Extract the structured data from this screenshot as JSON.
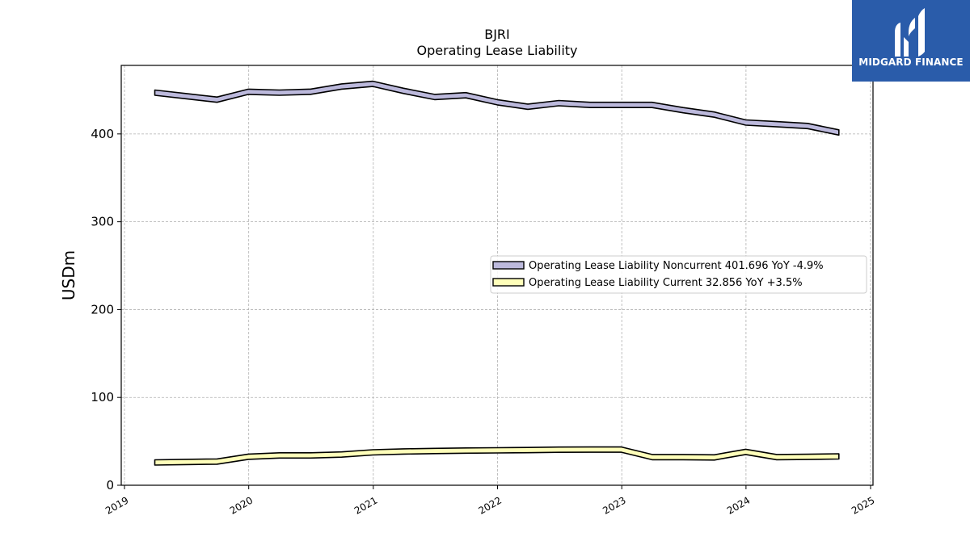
{
  "brand": {
    "logo_text": "MIDGARD FINANCE",
    "bg_color": "#2a5caa"
  },
  "chart_data": {
    "type": "area",
    "title": "BJRI",
    "subtitle": "Operating Lease Liability",
    "ylabel": "USDm",
    "xlabel": "",
    "x_ticks": [
      "2019",
      "2020",
      "2021",
      "2022",
      "2023",
      "2024",
      "2025"
    ],
    "y_ticks": [
      0,
      100,
      200,
      300,
      400
    ],
    "xlim": [
      "2019-01-01",
      "2025-01-01"
    ],
    "ylim": [
      0,
      478
    ],
    "grid": true,
    "legend_position": "center-right",
    "dates": [
      "2019-03-31",
      "2019-06-30",
      "2019-09-30",
      "2019-12-31",
      "2020-03-31",
      "2020-06-30",
      "2020-09-30",
      "2020-12-31",
      "2021-03-31",
      "2021-06-30",
      "2021-09-30",
      "2021-12-31",
      "2022-03-31",
      "2022-06-30",
      "2022-09-30",
      "2022-12-31",
      "2023-03-31",
      "2023-06-30",
      "2023-09-30",
      "2023-12-31",
      "2024-03-31",
      "2024-06-30",
      "2024-09-30"
    ],
    "series": [
      {
        "name": "Operating Lease Liability Noncurrent",
        "legend_label": "Operating Lease Liability Noncurrent  401.696 YoY -4.9%",
        "values": [
          447,
          443,
          439,
          448,
          447,
          448,
          454,
          457,
          449,
          442,
          444,
          436,
          431,
          435,
          433,
          433,
          433,
          427,
          422,
          413,
          411,
          409,
          401.696
        ],
        "fill": "#bcb9dc",
        "edge": "#000000"
      },
      {
        "name": "Operating Lease Liability Current",
        "legend_label": "Operating Lease Liability Current  32.856 YoY +3.5%",
        "values": [
          26,
          26.5,
          27,
          32.5,
          34,
          34,
          35,
          37.5,
          38.5,
          39,
          39.5,
          39.8,
          40,
          40.5,
          40.6,
          40.6,
          32,
          32,
          31.7,
          38,
          32,
          32.3,
          32.856
        ],
        "fill": "#ffffba",
        "edge": "#000000"
      }
    ]
  }
}
